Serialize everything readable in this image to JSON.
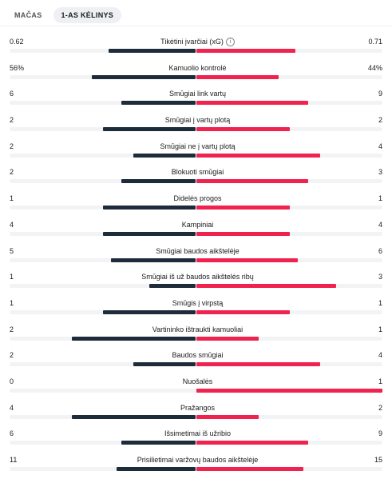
{
  "tabs": [
    {
      "label": "MAČAS",
      "active": false
    },
    {
      "label": "1-AS KĖLINYS",
      "active": true
    }
  ],
  "colors": {
    "home": "#1e2b3a",
    "away": "#f0224e",
    "track": "#f2f3f5"
  },
  "stats": [
    {
      "label": "Tikėtini įvarčiai (xG)",
      "home": "0.62",
      "away": "0.71",
      "home_share": 0.466,
      "away_share": 0.534,
      "info_icon": "info-circle-icon"
    },
    {
      "label": "Kamuolio kontrolė",
      "home": "56%",
      "away": "44%",
      "home_share": 0.56,
      "away_share": 0.44
    },
    {
      "label": "Smūgiai link vartų",
      "home": "6",
      "away": "9",
      "home_share": 0.4,
      "away_share": 0.6
    },
    {
      "label": "Smūgiai į vartų plotą",
      "home": "2",
      "away": "2",
      "home_share": 0.5,
      "away_share": 0.5
    },
    {
      "label": "Smūgiai ne į vartų plotą",
      "home": "2",
      "away": "4",
      "home_share": 0.333,
      "away_share": 0.667
    },
    {
      "label": "Blokuoti smūgiai",
      "home": "2",
      "away": "3",
      "home_share": 0.4,
      "away_share": 0.6
    },
    {
      "label": "Didelės progos",
      "home": "1",
      "away": "1",
      "home_share": 0.5,
      "away_share": 0.5
    },
    {
      "label": "Kampiniai",
      "home": "4",
      "away": "4",
      "home_share": 0.5,
      "away_share": 0.5
    },
    {
      "label": "Smūgiai baudos aikštelėje",
      "home": "5",
      "away": "6",
      "home_share": 0.455,
      "away_share": 0.545
    },
    {
      "label": "Smūgiai iš už baudos aikštelės ribų",
      "home": "1",
      "away": "3",
      "home_share": 0.25,
      "away_share": 0.75
    },
    {
      "label": "Smūgis į virpstą",
      "home": "1",
      "away": "1",
      "home_share": 0.5,
      "away_share": 0.5
    },
    {
      "label": "Vartininko ištraukti kamuoliai",
      "home": "2",
      "away": "1",
      "home_share": 0.667,
      "away_share": 0.333
    },
    {
      "label": "Baudos smūgiai",
      "home": "2",
      "away": "4",
      "home_share": 0.333,
      "away_share": 0.667
    },
    {
      "label": "Nuošalės",
      "home": "0",
      "away": "1",
      "home_share": 0.0,
      "away_share": 1.0
    },
    {
      "label": "Pražangos",
      "home": "4",
      "away": "2",
      "home_share": 0.667,
      "away_share": 0.333
    },
    {
      "label": "Išsimetimai iš užribio",
      "home": "6",
      "away": "9",
      "home_share": 0.4,
      "away_share": 0.6
    },
    {
      "label": "Prisilietimai varžovų baudos aikštelėje",
      "home": "11",
      "away": "15",
      "home_share": 0.423,
      "away_share": 0.577
    }
  ]
}
